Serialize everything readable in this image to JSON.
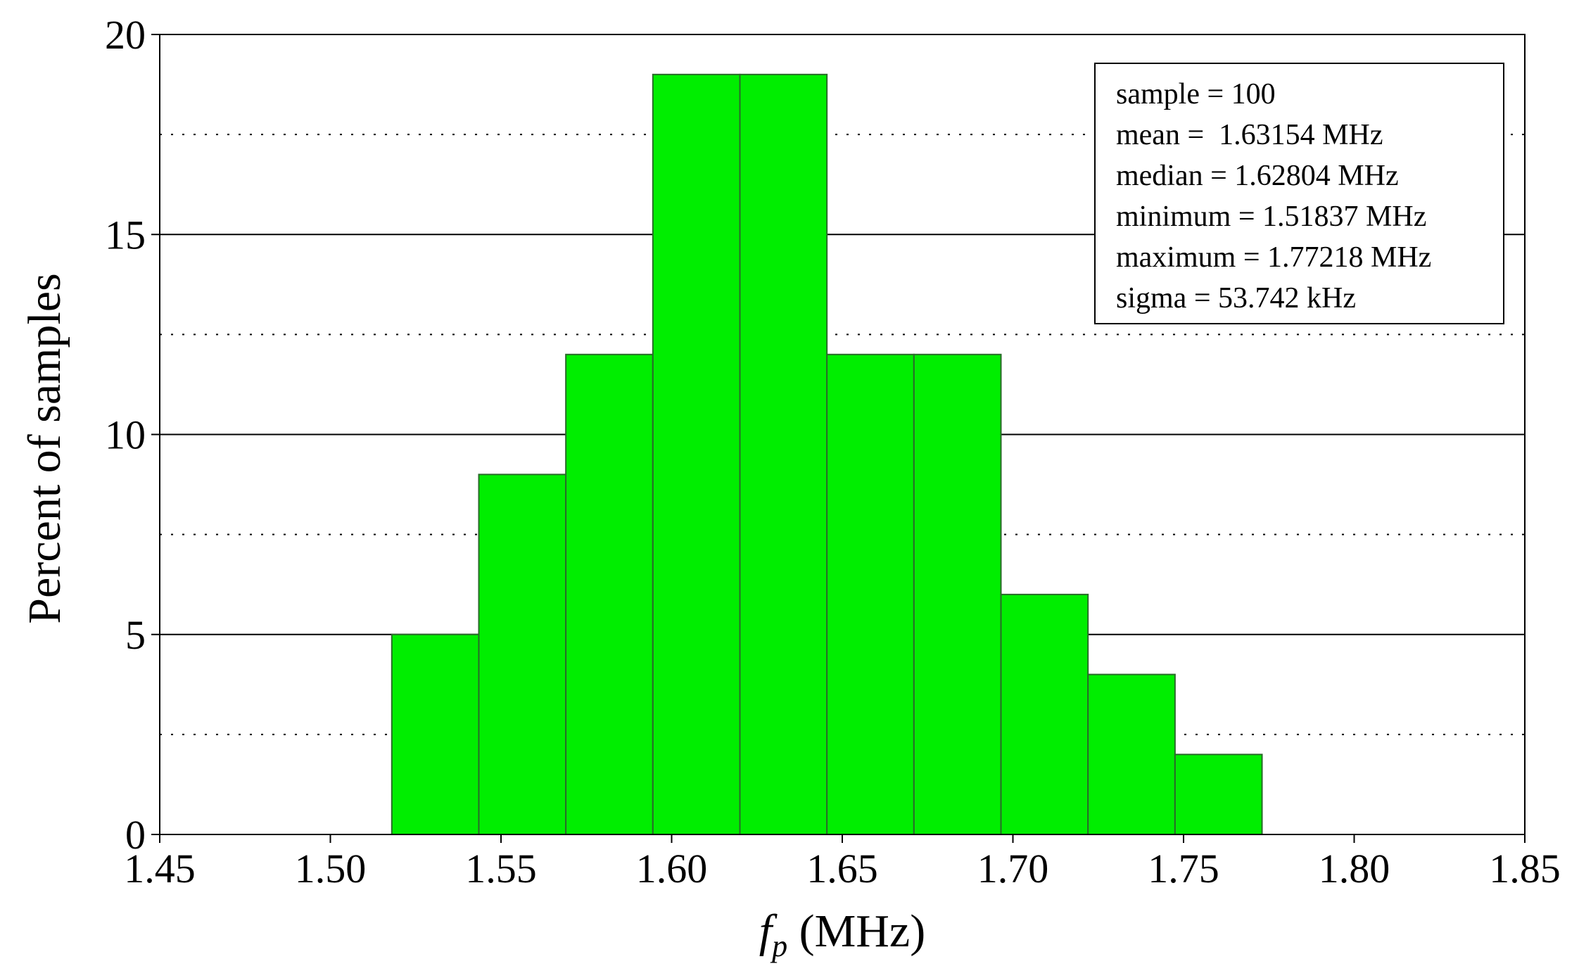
{
  "chart_data": {
    "type": "bar",
    "bin_edges": [
      1.518,
      1.5435,
      1.569,
      1.5945,
      1.62,
      1.6455,
      1.671,
      1.6965,
      1.722,
      1.7475,
      1.773
    ],
    "values": [
      5,
      9,
      12,
      19,
      19,
      12,
      12,
      6,
      4,
      2
    ],
    "xlim": [
      1.45,
      1.85
    ],
    "ylim": [
      0,
      20
    ],
    "x_ticks": [
      "1.45",
      "1.50",
      "1.55",
      "1.60",
      "1.65",
      "1.70",
      "1.75",
      "1.80",
      "1.85"
    ],
    "y_ticks": [
      "0",
      "5",
      "10",
      "15",
      "20"
    ],
    "major_grid": [
      5,
      10,
      15
    ],
    "minor_grid": [
      2.5,
      7.5,
      12.5,
      17.5
    ],
    "xlabel_symbol": "f",
    "xlabel_subscript": "p",
    "xlabel_unit": " (MHz)",
    "ylabel": "Percent of samples",
    "bar_color": "#00ee00",
    "stats": [
      "sample = 100",
      "mean =  1.63154 MHz",
      "median = 1.62804 MHz",
      "minimum = 1.51837 MHz",
      "maximum = 1.77218 MHz",
      "sigma = 53.742 kHz"
    ],
    "stats_box_position": "top-right"
  }
}
